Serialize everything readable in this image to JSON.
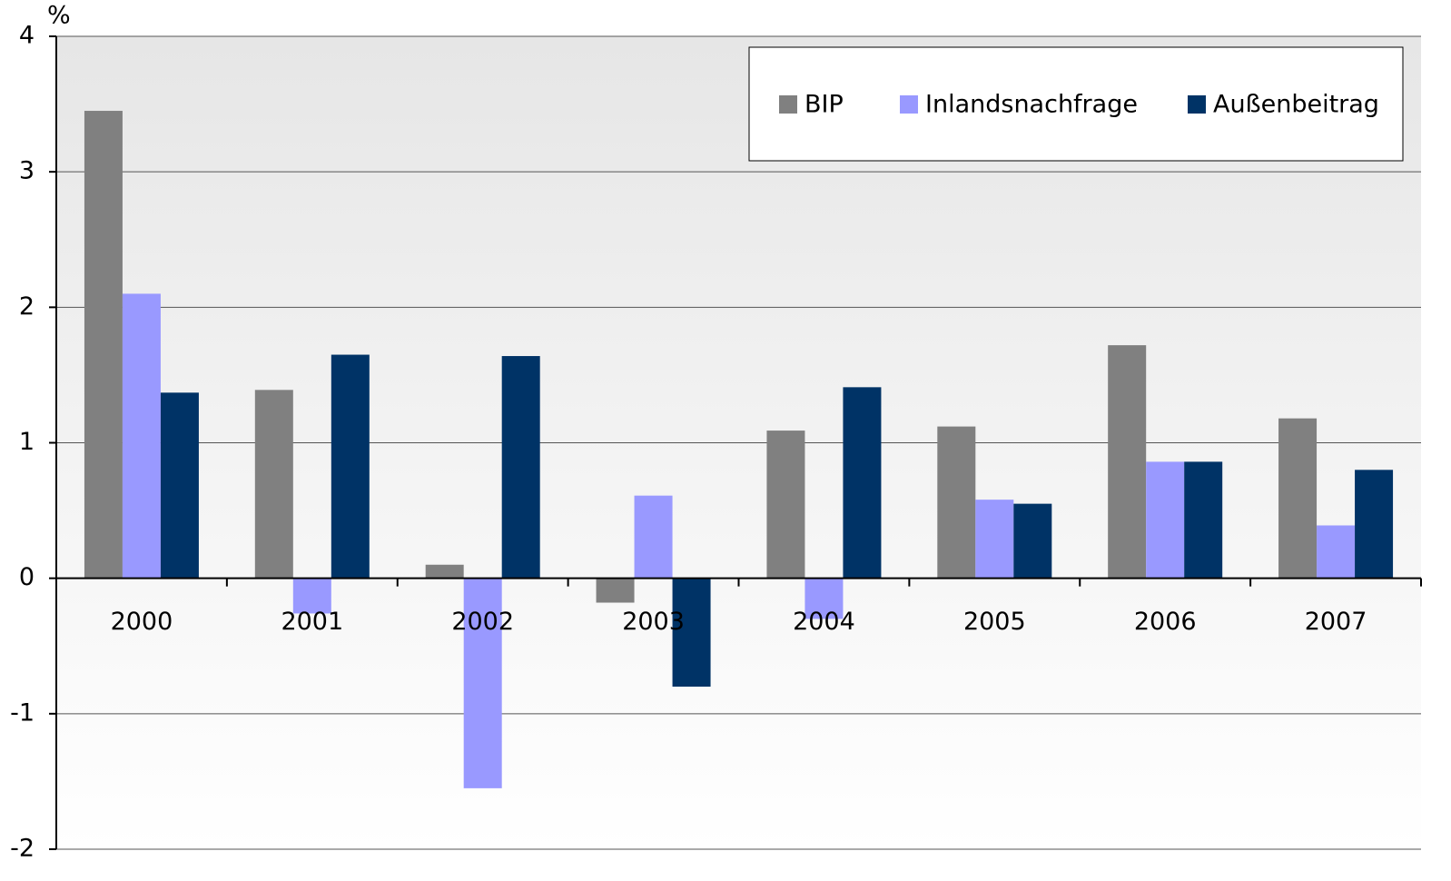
{
  "chart_data": {
    "type": "bar",
    "y_unit": "%",
    "categories": [
      "2000",
      "2001",
      "2002",
      "2003",
      "2004",
      "2005",
      "2006",
      "2007"
    ],
    "series": [
      {
        "name": "BIP",
        "color": "#808080",
        "values": [
          3.45,
          1.39,
          0.1,
          -0.18,
          1.09,
          1.12,
          1.72,
          1.18
        ]
      },
      {
        "name": "Inlandsnachfrage",
        "color": "#9999ff",
        "values": [
          2.1,
          -0.26,
          -1.55,
          0.61,
          -0.3,
          0.58,
          0.86,
          0.39
        ]
      },
      {
        "name": "Außenbeitrag",
        "color": "#003366",
        "values": [
          1.37,
          1.65,
          1.64,
          -0.8,
          1.41,
          0.55,
          0.86,
          0.8
        ]
      }
    ],
    "ylim": [
      -2,
      4
    ],
    "yticks": [
      -2,
      -1,
      0,
      1,
      2,
      3,
      4
    ],
    "grid": true,
    "legend": "top-right"
  }
}
